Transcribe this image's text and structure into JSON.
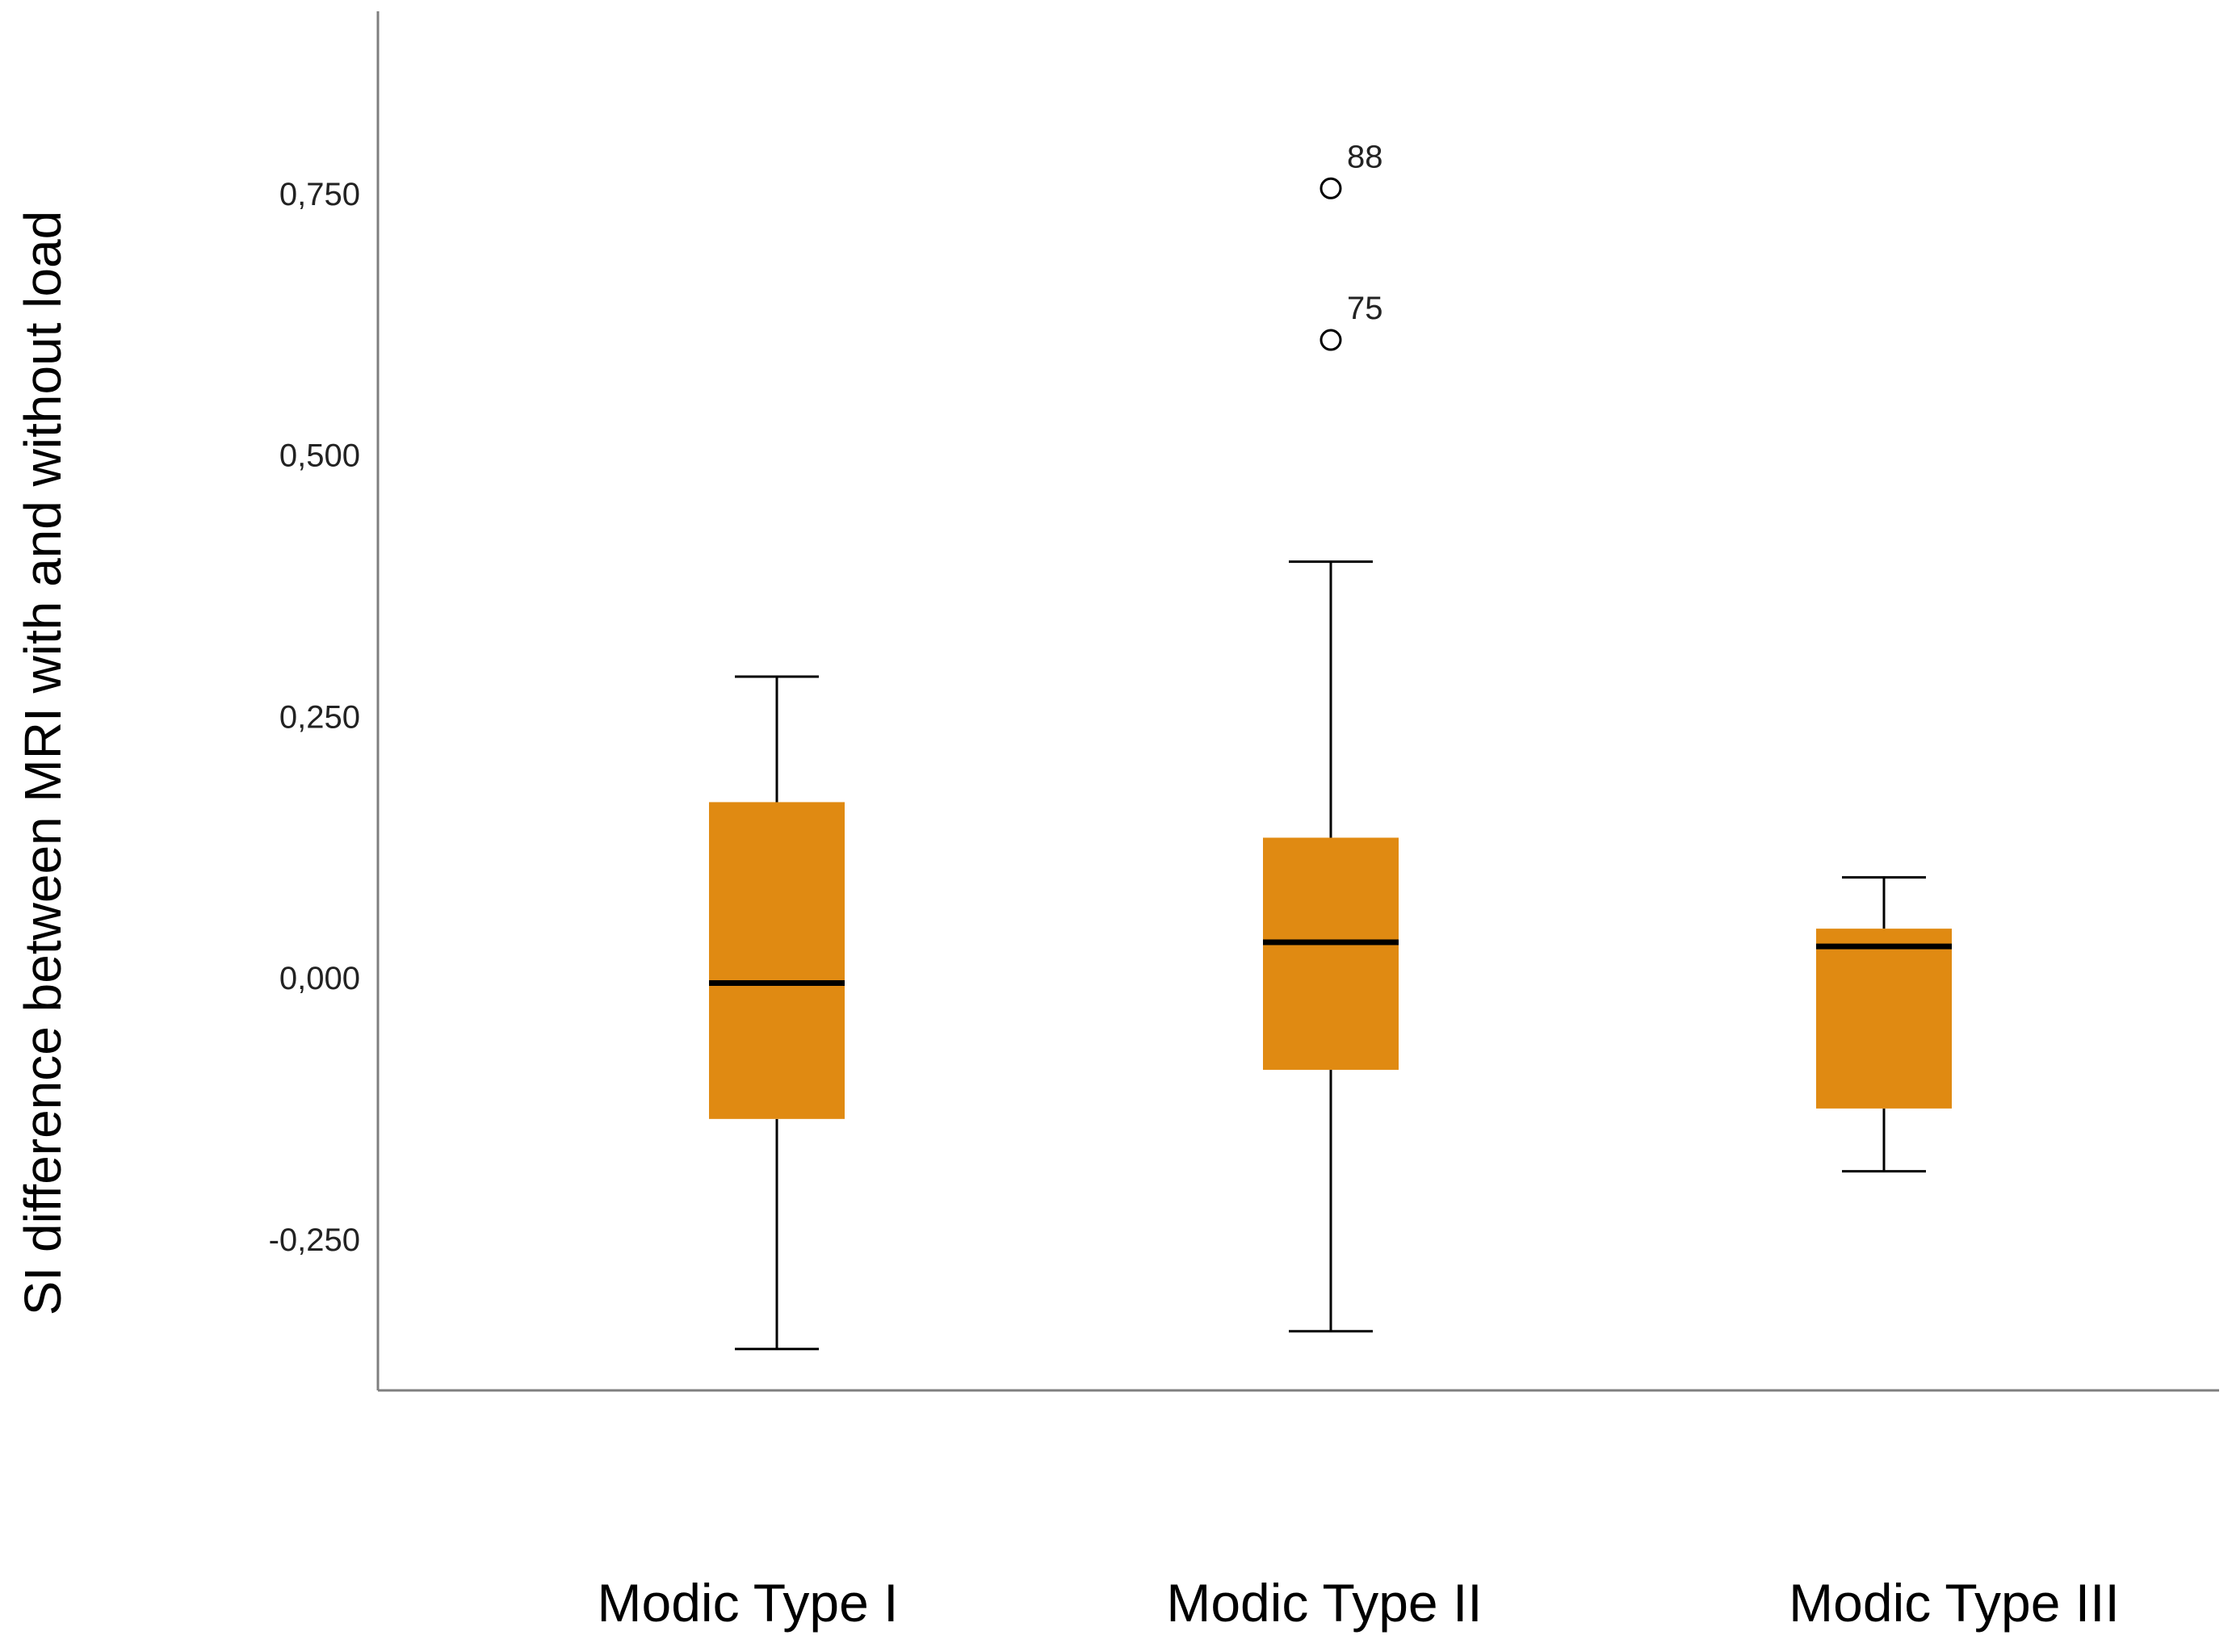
{
  "chart_data": {
    "type": "box",
    "title": "",
    "ylabel": "SI difference between MRI with and without load",
    "xlabel": "",
    "ylim": [
      -0.395,
      0.92
    ],
    "yticks": [
      {
        "value": -0.25,
        "label": "-0,250"
      },
      {
        "value": 0.0,
        "label": "0,000"
      },
      {
        "value": 0.25,
        "label": "0,250"
      },
      {
        "value": 0.5,
        "label": "0,500"
      },
      {
        "value": 0.75,
        "label": "0,750"
      }
    ],
    "grid": false,
    "box_color": "#E08A12",
    "median_color": "#000000",
    "categories": [
      "Modic Type I",
      "Modic Type II",
      "Modic Type III"
    ],
    "boxes": [
      {
        "category": "Modic Type I",
        "whisker_low": -0.355,
        "q1": -0.135,
        "median": -0.005,
        "q3": 0.168,
        "whisker_high": 0.288,
        "outliers": []
      },
      {
        "category": "Modic Type II",
        "whisker_low": -0.338,
        "q1": -0.088,
        "median": 0.034,
        "q3": 0.134,
        "whisker_high": 0.398,
        "outliers": [
          {
            "label": "88",
            "value": 0.755
          },
          {
            "label": "75",
            "value": 0.61
          }
        ]
      },
      {
        "category": "Modic Type III",
        "whisker_low": -0.185,
        "q1": -0.125,
        "median": 0.03,
        "q3": 0.047,
        "whisker_high": 0.096,
        "outliers": []
      }
    ]
  }
}
